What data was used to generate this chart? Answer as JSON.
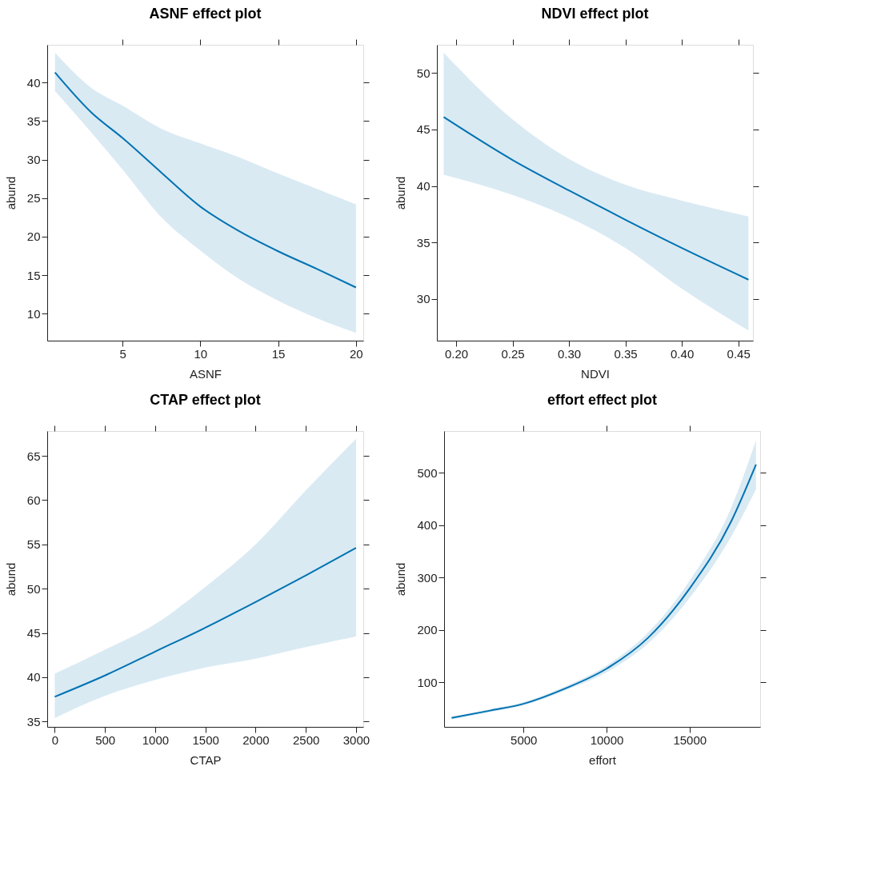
{
  "chart_data": [
    {
      "type": "line",
      "title": "ASNF effect plot",
      "xlabel": "ASNF",
      "ylabel": "abund",
      "xlim": [
        0.16,
        20.47
      ],
      "ylim": [
        6.5,
        44.9
      ],
      "xticks": [
        5,
        10,
        15,
        20
      ],
      "yticks": [
        10,
        15,
        20,
        25,
        30,
        35,
        40
      ],
      "grid": false,
      "x": [
        0.66,
        3,
        5,
        7.5,
        10,
        12.5,
        15,
        17.5,
        20
      ],
      "series": [
        {
          "color": "#0072b2",
          "values": [
            41.3,
            36.1,
            32.8,
            28.3,
            23.9,
            20.7,
            18.1,
            15.8,
            13.4
          ],
          "lower": [
            38.9,
            33.5,
            28.7,
            22.5,
            18.2,
            14.5,
            11.7,
            9.4,
            7.5
          ],
          "upper": [
            43.9,
            39.3,
            37.0,
            34.0,
            32.1,
            30.3,
            28.2,
            26.2,
            24.2
          ]
        }
      ]
    },
    {
      "type": "line",
      "title": "NDVI effect plot",
      "xlabel": "NDVI",
      "ylabel": "abund",
      "xlim": [
        0.183,
        0.463
      ],
      "ylim": [
        26.3,
        52.5
      ],
      "xticks": [
        {
          "value": 0.2,
          "label": "0.20"
        },
        {
          "value": 0.25,
          "label": "0.25"
        },
        {
          "value": 0.3,
          "label": "0.30"
        },
        {
          "value": 0.35,
          "label": "0.35"
        },
        {
          "value": 0.4,
          "label": "0.40"
        },
        {
          "value": 0.45,
          "label": "0.45"
        }
      ],
      "yticks": [
        30,
        35,
        40,
        45,
        50
      ],
      "grid": false,
      "x": [
        0.189,
        0.25,
        0.3,
        0.35,
        0.4,
        0.459
      ],
      "series": [
        {
          "color": "#0072b2",
          "values": [
            46.1,
            42.3,
            39.6,
            37.0,
            34.5,
            31.7
          ],
          "lower": [
            41.0,
            39.2,
            37.2,
            34.5,
            30.9,
            27.2
          ],
          "upper": [
            51.8,
            45.9,
            42.4,
            40.1,
            38.7,
            37.3
          ]
        }
      ]
    },
    {
      "type": "line",
      "title": "CTAP effect plot",
      "xlabel": "CTAP",
      "ylabel": "abund",
      "xlim": [
        -75,
        3072
      ],
      "ylim": [
        34.4,
        67.8
      ],
      "xticks": [
        0,
        500,
        1000,
        1500,
        2000,
        2500,
        3000
      ],
      "yticks": [
        35,
        40,
        45,
        50,
        55,
        60,
        65
      ],
      "grid": false,
      "x": [
        0,
        500,
        1000,
        1500,
        2000,
        2500,
        3000
      ],
      "series": [
        {
          "color": "#0072b2",
          "values": [
            37.8,
            40.2,
            42.9,
            45.6,
            48.5,
            51.5,
            54.6
          ],
          "lower": [
            35.4,
            37.9,
            39.7,
            41.1,
            42.1,
            43.4,
            44.6
          ],
          "upper": [
            40.4,
            43.1,
            46.0,
            50.2,
            55.0,
            61.1,
            66.9
          ]
        }
      ]
    },
    {
      "type": "line",
      "title": "effort effect plot",
      "xlabel": "effort",
      "ylabel": "abund",
      "xlim": [
        219,
        19250
      ],
      "ylim": [
        14.9,
        580
      ],
      "xticks": [
        5000,
        10000,
        15000
      ],
      "yticks": [
        100,
        200,
        300,
        400,
        500
      ],
      "grid": false,
      "x": [
        672,
        3000,
        5000,
        7500,
        10000,
        12500,
        15000,
        17500,
        19000
      ],
      "series": [
        {
          "color": "#0072b2",
          "values": [
            32,
            46,
            59,
            88,
            126,
            185,
            279,
            407,
            516
          ],
          "lower": [
            29,
            43,
            56,
            84,
            119,
            174,
            261,
            378,
            469
          ],
          "upper": [
            34,
            49,
            62,
            92,
            132,
            195,
            294,
            433,
            562
          ]
        }
      ]
    }
  ]
}
